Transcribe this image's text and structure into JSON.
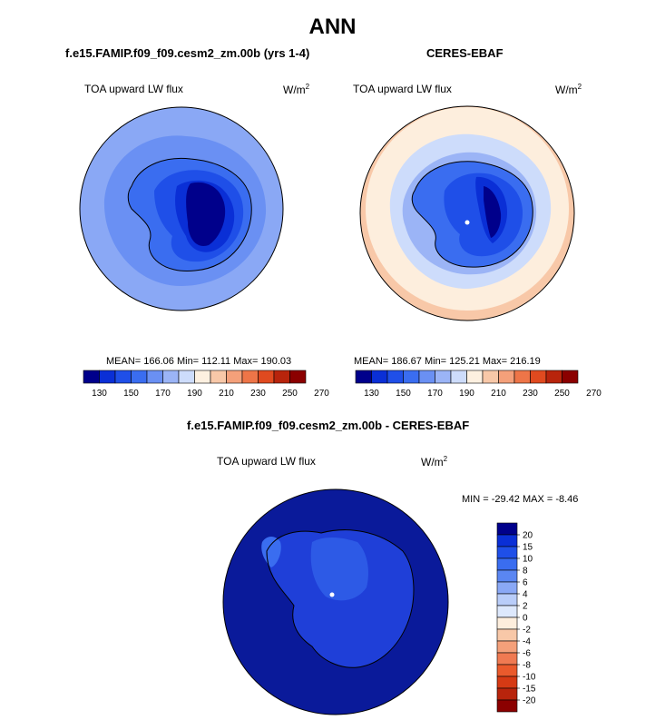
{
  "page": {
    "title": "ANN"
  },
  "colors": {
    "blue_palette": [
      "#00008b",
      "#0a2fd6",
      "#1f4fe8",
      "#3a6df0",
      "#6a90f3",
      "#9bb4f6",
      "#cddcfb",
      "#fdf0e0",
      "#f8c8a8",
      "#f4a07a",
      "#ee7548",
      "#e04a1f",
      "#b8240c",
      "#8b0000"
    ],
    "diff_palette": [
      "#00008b",
      "#0a2fd6",
      "#1f4fe8",
      "#3a6df0",
      "#5a86f2",
      "#8aa8f5",
      "#b9cdf9",
      "#dde8fc",
      "#fdeedd",
      "#f8c8a8",
      "#f4a07a",
      "#f07a52",
      "#ea5a2c",
      "#d63a14",
      "#b8240c",
      "#8b0000"
    ]
  },
  "panels": [
    {
      "id": "model",
      "title": "f.e15.FAMIP.f09_f09.cesm2_zm.00b (yrs 1-4)",
      "variable": "TOA upward LW flux",
      "units": "W/m",
      "units_exp": "2",
      "stats": "MEAN= 166.06  Min= 112.11  Max= 190.03"
    },
    {
      "id": "obs",
      "title": "CERES-EBAF",
      "variable": "TOA upward LW flux",
      "units": "W/m",
      "units_exp": "2",
      "stats": "MEAN= 186.67  Min= 125.21  Max= 216.19"
    },
    {
      "id": "diff",
      "title": "f.e15.FAMIP.f09_f09.cesm2_zm.00b - CERES-EBAF",
      "variable": "TOA upward LW flux",
      "units": "W/m",
      "units_exp": "2",
      "stats": "MIN = -29.42 MAX =  -8.46"
    }
  ],
  "chart_data": [
    {
      "type": "heatmap",
      "title": "f.e15.FAMIP.f09_f09.cesm2_zm.00b (yrs 1-4)",
      "projection": "south polar stereographic",
      "variable": "TOA upward LW flux",
      "units": "W/m2",
      "mean": 166.06,
      "min": 112.11,
      "max": 190.03,
      "colorbar_levels": [
        130,
        150,
        170,
        190,
        210,
        230,
        250,
        270
      ],
      "colorbar_ticks": [
        "130",
        "150",
        "170",
        "190",
        "210",
        "230",
        "250",
        "270"
      ]
    },
    {
      "type": "heatmap",
      "title": "CERES-EBAF",
      "projection": "south polar stereographic",
      "variable": "TOA upward LW flux",
      "units": "W/m2",
      "mean": 186.67,
      "min": 125.21,
      "max": 216.19,
      "colorbar_levels": [
        130,
        150,
        170,
        190,
        210,
        230,
        250,
        270
      ],
      "colorbar_ticks": [
        "130",
        "150",
        "170",
        "190",
        "210",
        "230",
        "250",
        "270"
      ]
    },
    {
      "type": "heatmap",
      "title": "f.e15.FAMIP.f09_f09.cesm2_zm.00b - CERES-EBAF",
      "projection": "south polar stereographic",
      "variable": "TOA upward LW flux",
      "units": "W/m2",
      "min": -29.42,
      "max": -8.46,
      "colorbar_levels": [
        20,
        15,
        10,
        8,
        6,
        4,
        2,
        0,
        -2,
        -4,
        -6,
        -8,
        -10,
        -15,
        -20
      ],
      "colorbar_ticks": [
        "20",
        "15",
        "10",
        "8",
        "6",
        "4",
        "2",
        "0",
        "-2",
        "-4",
        "-6",
        "-8",
        "-10",
        "-15",
        "-20"
      ]
    }
  ]
}
